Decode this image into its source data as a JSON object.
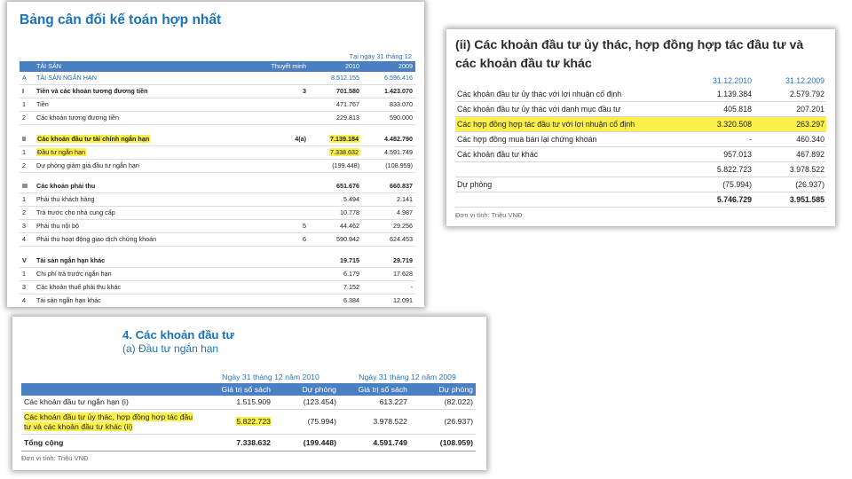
{
  "balance_sheet": {
    "title": "Bảng cân đối kế toán hợp nhất",
    "date_label": "Tại ngày 31 tháng 12",
    "header": {
      "col_name": "TÀI SẢN",
      "col_note": "Thuyết minh",
      "col_2010": "2010",
      "col_2009": "2009"
    },
    "rows": [
      {
        "type": "blue",
        "code": "A",
        "name": "TÀI SẢN NGẮN HẠN",
        "note": "",
        "v2010": "8.512.155",
        "v2009": "6.596.416"
      },
      {
        "type": "bold",
        "code": "I",
        "name": "Tiền và các khoản tương đương tiền",
        "note": "3",
        "v2010": "701.580",
        "v2009": "1.423.070"
      },
      {
        "type": "",
        "code": "1",
        "name": "Tiền",
        "note": "",
        "v2010": "471.767",
        "v2009": "833.070"
      },
      {
        "type": "",
        "code": "2",
        "name": "Các khoản tương đương tiền",
        "note": "",
        "v2010": "229.813",
        "v2009": "590.000"
      },
      {
        "type": "gap"
      },
      {
        "type": "bold",
        "code": "II",
        "name": "Các khoản đầu tư tài chính ngắn hạn",
        "note": "4(a)",
        "v2010": "7.139.184",
        "v2009": "4.482.790",
        "hl_name": true,
        "hl_v2010": true
      },
      {
        "type": "",
        "code": "1",
        "name": "Đầu tư ngắn hạn",
        "note": "",
        "v2010": "7.338.632",
        "v2009": "4.591.749",
        "hl_name": true,
        "hl_v2010": true
      },
      {
        "type": "",
        "code": "2",
        "name": "Dự phòng giảm giá đầu tư ngắn hạn",
        "note": "",
        "v2010": "(199.448)",
        "v2009": "(108.959)"
      },
      {
        "type": "gap"
      },
      {
        "type": "bold",
        "code": "III",
        "name": "Các khoản phải thu",
        "note": "",
        "v2010": "651.676",
        "v2009": "660.837"
      },
      {
        "type": "",
        "code": "1",
        "name": "Phải thu khách hàng",
        "note": "",
        "v2010": "5.494",
        "v2009": "2.141"
      },
      {
        "type": "",
        "code": "2",
        "name": "Trả trước cho nhà cung cấp",
        "note": "",
        "v2010": "10.778",
        "v2009": "4.987"
      },
      {
        "type": "",
        "code": "3",
        "name": "Phải thu nội bộ",
        "note": "5",
        "v2010": "44.462",
        "v2009": "29.256"
      },
      {
        "type": "",
        "code": "4",
        "name": "Phải thu hoạt động giao dịch chứng khoán",
        "note": "6",
        "v2010": "590.942",
        "v2009": "624.453"
      },
      {
        "type": "gap"
      },
      {
        "type": "bold",
        "code": "V",
        "name": "Tài sản ngắn hạn khác",
        "note": "",
        "v2010": "19.715",
        "v2009": "29.719"
      },
      {
        "type": "",
        "code": "1",
        "name": "Chi phí trả trước ngắn hạn",
        "note": "",
        "v2010": "6.179",
        "v2009": "17.628"
      },
      {
        "type": "",
        "code": "3",
        "name": "Các khoản thuế phải thu khác",
        "note": "",
        "v2010": "7.152",
        "v2009": "-"
      },
      {
        "type": "",
        "code": "4",
        "name": "Tài sản ngắn hạn khác",
        "note": "",
        "v2010": "6.384",
        "v2009": "12.091"
      }
    ]
  },
  "trust_investments": {
    "title": "(ii) Các khoản đầu tư ủy thác, hợp đồng hợp tác đầu tư và các khoản đầu tư khác",
    "col_1": "31.12.2010",
    "col_2": "31.12.2009",
    "rows": [
      {
        "name": "Các khoản đầu tư ủy thác với lợi nhuận cố định",
        "v1": "1.139.384",
        "v2": "2.579.792"
      },
      {
        "name": "Các khoản đầu tư ủy thác với danh mục đầu tư",
        "v1": "405.818",
        "v2": "207.201"
      },
      {
        "name": "Các hợp đồng hợp tác đầu tư với lợi nhuận cố định",
        "v1": "3.320.508",
        "v2": "263.297",
        "hl": true
      },
      {
        "name": "Các hợp đồng mua bán lại chứng khoán",
        "v1": "-",
        "v2": "460.340"
      },
      {
        "name": "Các khoản đầu tư khác",
        "v1": "957.013",
        "v2": "467.892"
      },
      {
        "name": "",
        "v1": "5.822.723",
        "v2": "3.978.522"
      },
      {
        "name": "Dự phòng",
        "v1": "(75.994)",
        "v2": "(26.937)"
      },
      {
        "name": "",
        "v1": "5.746.729",
        "v2": "3.951.585",
        "bold": true
      }
    ],
    "unit": "Đơn vị tính: Triệu VNĐ"
  },
  "investments": {
    "title": "4. Các khoản đầu tư",
    "subtitle": "(a) Đầu tư ngắn hạn",
    "group_2010": "Ngày 31 tháng 12 năm 2010",
    "group_2009": "Ngày 31 tháng 12 năm 2009",
    "col_book": "Giá trị sổ sách",
    "col_provision": "Dự phòng",
    "rows": [
      {
        "name": "Các khoản đầu tư ngắn hạn (i)",
        "b2010": "1.515.909",
        "p2010": "(123.454)",
        "b2009": "613.227",
        "p2009": "(82.022)"
      },
      {
        "name": "Các khoản đầu tư ủy thác, hợp đồng hợp tác đầu tư và các khoản đầu tư khác (ii)",
        "b2010": "5.822.723",
        "p2010": "(75.994)",
        "b2009": "3.978.522",
        "p2009": "(26.937)"
      }
    ],
    "total": {
      "name": "Tổng cộng",
      "b2010": "7.338.632",
      "p2010": "(199.448)",
      "b2009": "4.591.749",
      "p2009": "(108.959)"
    },
    "unit": "Đơn vị tính: Triệu VNĐ"
  },
  "colors": {
    "accent_blue": "#1a73b8",
    "header_blue": "#4a7fc1",
    "highlight": "#fbef4a"
  }
}
